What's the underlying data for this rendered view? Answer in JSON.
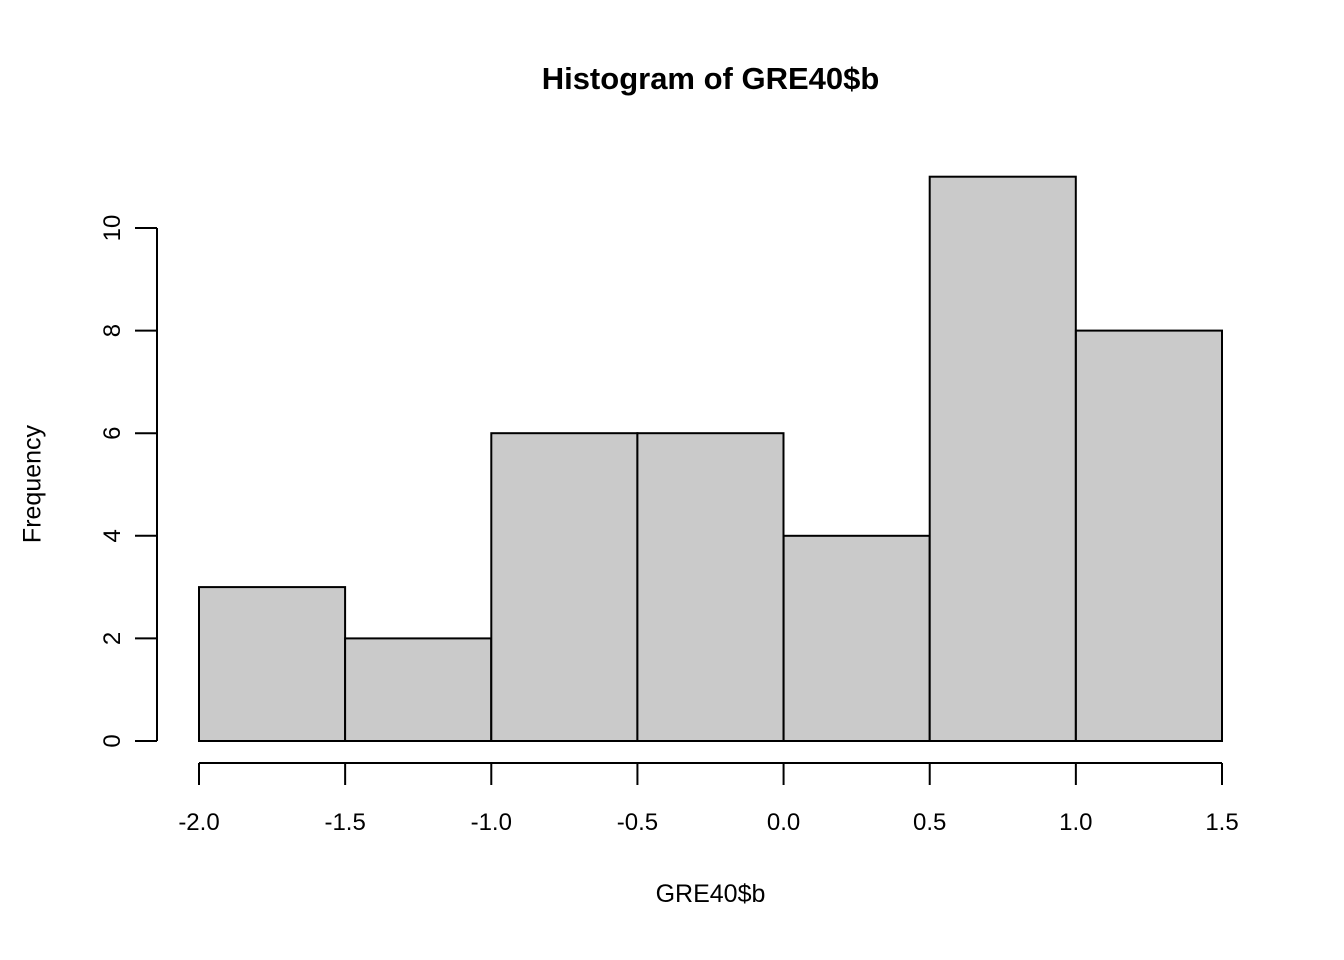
{
  "chart_data": {
    "type": "bar",
    "subtype": "histogram",
    "title": "Histogram of GRE40$b",
    "xlabel": "GRE40$b",
    "ylabel": "Frequency",
    "bin_breaks": [
      -2.0,
      -1.5,
      -1.0,
      -0.5,
      0.0,
      0.5,
      1.0,
      1.5
    ],
    "counts": [
      3,
      2,
      6,
      6,
      4,
      11,
      8
    ],
    "categories": [
      "[-2.0,-1.5]",
      "(-1.5,-1.0]",
      "(-1.0,-0.5]",
      "(-0.5,0.0]",
      "(0.0,0.5]",
      "(0.5,1.0]",
      "(1.0,1.5]"
    ],
    "total_n": 40,
    "xlim": [
      -2.0,
      1.5
    ],
    "ylim": [
      0,
      11
    ],
    "x_tick_values": [
      -2.0,
      -1.5,
      -1.0,
      -0.5,
      0.0,
      0.5,
      1.0,
      1.5
    ],
    "x_tick_labels": [
      "-2.0",
      "-1.5",
      "-1.0",
      "-0.5",
      "0.0",
      "0.5",
      "1.0",
      "1.5"
    ],
    "y_tick_values": [
      0,
      2,
      4,
      6,
      8,
      10
    ],
    "y_tick_labels": [
      "0",
      "2",
      "4",
      "6",
      "8",
      "10"
    ],
    "grid": false,
    "legend": null,
    "style": {
      "bar_fill": "#CACACA",
      "bar_stroke": "#000000",
      "axis_color": "#000000",
      "background": "#FFFFFF",
      "y_tick_label_rotation": -90
    }
  }
}
